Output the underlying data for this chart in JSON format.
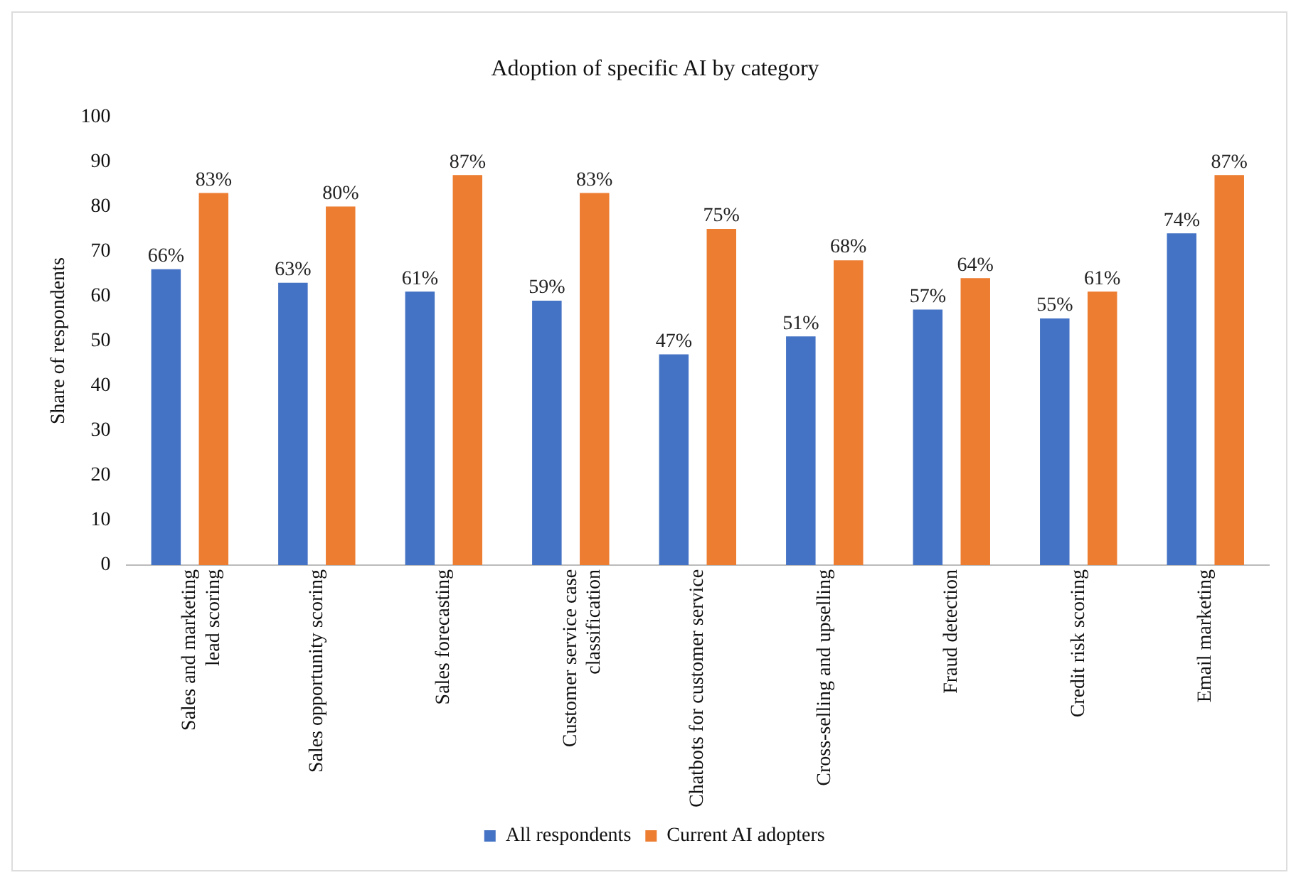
{
  "chart_data": {
    "type": "bar",
    "title": "Adoption of specific AI by category",
    "ylabel": "Share of respondents",
    "categories": [
      "Sales and marketing lead scoring",
      "Sales opportunity scoring",
      "Sales forecasting",
      "Customer service case classification",
      "Chatbots for customer service",
      "Cross-selling and upselling",
      "Fraud detection",
      "Credit risk scoring",
      "Email marketing"
    ],
    "series": [
      {
        "name": "All respondents",
        "color": "#4472c4",
        "values": [
          66,
          63,
          61,
          59,
          47,
          51,
          57,
          55,
          74
        ],
        "value_labels": [
          "66%",
          "63%",
          "61%",
          "59%",
          "47%",
          "51%",
          "57%",
          "55%",
          "74%"
        ]
      },
      {
        "name": "Current AI adopters",
        "color": "#ed7d31",
        "values": [
          83,
          80,
          87,
          83,
          75,
          68,
          64,
          61,
          87
        ],
        "value_labels": [
          "83%",
          "80%",
          "87%",
          "83%",
          "75%",
          "68%",
          "64%",
          "61%",
          "87%"
        ]
      }
    ],
    "ylim": [
      0,
      100
    ],
    "yticks": [
      0,
      10,
      20,
      30,
      40,
      50,
      60,
      70,
      80,
      90,
      100
    ],
    "grid": false,
    "legend": "bottom"
  }
}
